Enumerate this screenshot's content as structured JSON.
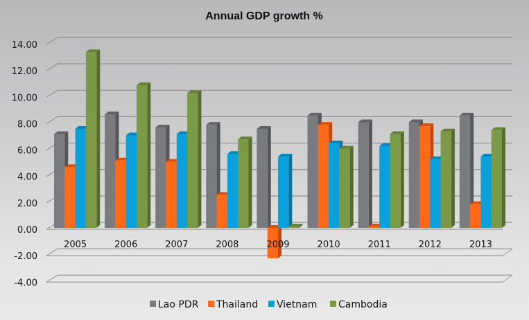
{
  "chart_data": {
    "type": "bar",
    "style": "3d-clustered-column",
    "title": "Annual GDP growth %",
    "xlabel": "",
    "ylabel": "",
    "categories": [
      "2005",
      "2006",
      "2007",
      "2008",
      "2009",
      "2010",
      "2011",
      "2012",
      "2013"
    ],
    "series": [
      {
        "name": "Lao PDR",
        "color": "#7a7b7f",
        "side": "#55565a",
        "top": "#626367",
        "values": [
          7.1,
          8.6,
          7.6,
          7.8,
          7.5,
          8.5,
          8.0,
          8.0,
          8.5
        ]
      },
      {
        "name": "Thailand",
        "color": "#ff6a19",
        "side": "#c24a0c",
        "top": "#d8520f",
        "values": [
          4.6,
          5.1,
          5.0,
          2.5,
          -2.3,
          7.8,
          0.1,
          7.7,
          1.8
        ]
      },
      {
        "name": "Vietnam",
        "color": "#0aa0dc",
        "side": "#07729e",
        "top": "#0884b8",
        "values": [
          7.5,
          7.0,
          7.1,
          5.6,
          5.4,
          6.4,
          6.2,
          5.2,
          5.4
        ]
      },
      {
        "name": "Cambodia",
        "color": "#7b9a48",
        "side": "#556b30",
        "top": "#66803a",
        "values": [
          13.3,
          10.8,
          10.2,
          6.7,
          0.1,
          6.0,
          7.1,
          7.3,
          7.4
        ]
      }
    ],
    "ylim": [
      -4,
      14
    ],
    "yticks": [
      "-4.00",
      "-2.00",
      "0.00",
      "2.00",
      "4.00",
      "6.00",
      "8.00",
      "10.00",
      "12.00",
      "14.00"
    ],
    "ytick_values": [
      -4,
      -2,
      0,
      2,
      4,
      6,
      8,
      10,
      12,
      14
    ],
    "grid": true,
    "legend_position": "bottom"
  }
}
